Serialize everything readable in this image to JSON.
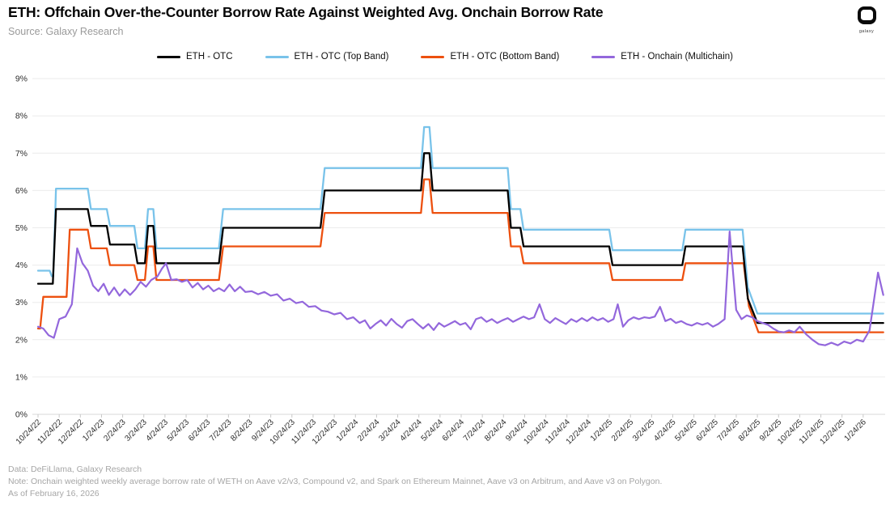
{
  "header": {
    "title": "ETH: Offchain Over-the-Counter Borrow Rate Against Weighted Avg. Onchain Borrow Rate",
    "source": "Source: Galaxy Research",
    "logo_text": "galaxy"
  },
  "legend": [
    {
      "label": "ETH - OTC",
      "color": "#000000"
    },
    {
      "label": "ETH - OTC (Top Band)",
      "color": "#79C3EA"
    },
    {
      "label": "ETH - OTC (Bottom Band)",
      "color": "#ED500F"
    },
    {
      "label": "ETH - Onchain (Multichain)",
      "color": "#9367DC"
    }
  ],
  "footer": {
    "line1": "Data: DeFiLlama, Galaxy Research",
    "line2": "Note: Onchain weighted weekly average borrow rate of WETH on Aave v2/v3, Compound v2, and Spark on Ethereum Mainnet, Aave v3 on Arbitrum, and Aave v3 on Polygon.",
    "line3": "As of February 16, 2026"
  },
  "chart_data": {
    "type": "line",
    "title": "ETH: Offchain Over-the-Counter Borrow Rate Against Weighted Avg. Onchain Borrow Rate",
    "x_unit": "months since 10/24/22 (integer i = tick_labels[i]); weekly data",
    "legend_position": "top",
    "grid": true,
    "x_axis": {
      "tick_labels": [
        "10/24/22",
        "11/24/22",
        "12/24/22",
        "1/24/23",
        "2/24/23",
        "3/24/23",
        "4/24/23",
        "5/24/23",
        "6/24/23",
        "7/24/23",
        "8/24/23",
        "9/24/23",
        "10/24/23",
        "11/24/23",
        "12/24/23",
        "1/24/24",
        "2/24/24",
        "3/24/24",
        "4/24/24",
        "5/24/24",
        "6/24/24",
        "7/24/24",
        "8/24/24",
        "9/24/24",
        "10/24/24",
        "11/24/24",
        "12/24/24",
        "1/24/25",
        "2/24/25",
        "3/24/25",
        "4/24/25",
        "5/24/25",
        "6/24/25",
        "7/24/25",
        "8/24/25",
        "9/24/25",
        "10/24/25",
        "11/24/25",
        "12/24/25",
        "1/24/26"
      ]
    },
    "y_axis": {
      "min": 0,
      "max": 9,
      "step": 1,
      "tick_suffix": "%",
      "tick_labels": [
        "0%",
        "1%",
        "2%",
        "3%",
        "4%",
        "5%",
        "6%",
        "7%",
        "8%",
        "9%"
      ]
    },
    "series": [
      {
        "name": "ETH - OTC (Top Band)",
        "color": "#79C3EA",
        "width": 2.3,
        "points": [
          [
            0,
            3.85
          ],
          [
            0.55,
            3.85
          ],
          [
            0.65,
            3.7
          ],
          [
            0.72,
            3.7
          ],
          [
            0.85,
            6.05
          ],
          [
            2.35,
            6.05
          ],
          [
            2.5,
            5.5
          ],
          [
            3.25,
            5.5
          ],
          [
            3.4,
            5.05
          ],
          [
            4.55,
            5.05
          ],
          [
            4.7,
            4.45
          ],
          [
            5.05,
            4.45
          ],
          [
            5.2,
            5.5
          ],
          [
            5.45,
            5.5
          ],
          [
            5.6,
            4.45
          ],
          [
            8.55,
            4.45
          ],
          [
            8.75,
            5.5
          ],
          [
            13.35,
            5.5
          ],
          [
            13.55,
            6.6
          ],
          [
            18.1,
            6.6
          ],
          [
            18.25,
            7.7
          ],
          [
            18.5,
            7.7
          ],
          [
            18.65,
            6.6
          ],
          [
            22.2,
            6.6
          ],
          [
            22.35,
            5.5
          ],
          [
            22.8,
            5.5
          ],
          [
            22.95,
            4.95
          ],
          [
            27.0,
            4.95
          ],
          [
            27.15,
            4.4
          ],
          [
            30.45,
            4.4
          ],
          [
            30.6,
            4.95
          ],
          [
            33.3,
            4.95
          ],
          [
            33.55,
            3.4
          ],
          [
            34.0,
            2.7
          ],
          [
            39.95,
            2.7
          ]
        ]
      },
      {
        "name": "ETH - OTC (Bottom Band)",
        "color": "#ED500F",
        "width": 2.3,
        "points": [
          [
            0,
            2.3
          ],
          [
            0.1,
            2.3
          ],
          [
            0.25,
            3.15
          ],
          [
            1.35,
            3.15
          ],
          [
            1.5,
            4.95
          ],
          [
            2.35,
            4.95
          ],
          [
            2.5,
            4.45
          ],
          [
            3.25,
            4.45
          ],
          [
            3.4,
            4.0
          ],
          [
            4.55,
            4.0
          ],
          [
            4.7,
            3.6
          ],
          [
            5.05,
            3.6
          ],
          [
            5.2,
            4.5
          ],
          [
            5.45,
            4.5
          ],
          [
            5.6,
            3.6
          ],
          [
            8.55,
            3.6
          ],
          [
            8.75,
            4.5
          ],
          [
            13.35,
            4.5
          ],
          [
            13.55,
            5.4
          ],
          [
            18.1,
            5.4
          ],
          [
            18.25,
            6.3
          ],
          [
            18.5,
            6.3
          ],
          [
            18.65,
            5.4
          ],
          [
            22.2,
            5.4
          ],
          [
            22.35,
            4.5
          ],
          [
            22.8,
            4.5
          ],
          [
            22.95,
            4.05
          ],
          [
            27.0,
            4.05
          ],
          [
            27.15,
            3.6
          ],
          [
            30.45,
            3.6
          ],
          [
            30.6,
            4.05
          ],
          [
            33.35,
            4.05
          ],
          [
            33.6,
            2.9
          ],
          [
            34.05,
            2.2
          ],
          [
            39.95,
            2.2
          ]
        ]
      },
      {
        "name": "ETH - OTC",
        "color": "#000000",
        "width": 2.3,
        "points": [
          [
            0,
            3.5
          ],
          [
            0.7,
            3.5
          ],
          [
            0.85,
            5.5
          ],
          [
            2.35,
            5.5
          ],
          [
            2.5,
            5.05
          ],
          [
            3.25,
            5.05
          ],
          [
            3.4,
            4.55
          ],
          [
            4.55,
            4.55
          ],
          [
            4.7,
            4.05
          ],
          [
            5.05,
            4.05
          ],
          [
            5.2,
            5.05
          ],
          [
            5.45,
            5.05
          ],
          [
            5.6,
            4.05
          ],
          [
            8.55,
            4.05
          ],
          [
            8.75,
            5.0
          ],
          [
            13.35,
            5.0
          ],
          [
            13.55,
            6.0
          ],
          [
            18.1,
            6.0
          ],
          [
            18.25,
            7.0
          ],
          [
            18.5,
            7.0
          ],
          [
            18.65,
            6.0
          ],
          [
            22.2,
            6.0
          ],
          [
            22.35,
            5.0
          ],
          [
            22.8,
            5.0
          ],
          [
            22.95,
            4.5
          ],
          [
            27.0,
            4.5
          ],
          [
            27.15,
            4.0
          ],
          [
            30.45,
            4.0
          ],
          [
            30.6,
            4.5
          ],
          [
            33.3,
            4.5
          ],
          [
            33.55,
            3.1
          ],
          [
            34.0,
            2.45
          ],
          [
            39.95,
            2.45
          ]
        ]
      },
      {
        "name": "ETH - Onchain (Multichain)",
        "color": "#9367DC",
        "width": 2.2,
        "points": [
          [
            0,
            2.35
          ],
          [
            0.25,
            2.3
          ],
          [
            0.5,
            2.12
          ],
          [
            0.75,
            2.05
          ],
          [
            1.0,
            2.55
          ],
          [
            1.3,
            2.62
          ],
          [
            1.6,
            2.95
          ],
          [
            1.85,
            4.45
          ],
          [
            2.1,
            4.05
          ],
          [
            2.35,
            3.85
          ],
          [
            2.6,
            3.45
          ],
          [
            2.85,
            3.3
          ],
          [
            3.1,
            3.5
          ],
          [
            3.35,
            3.2
          ],
          [
            3.6,
            3.4
          ],
          [
            3.85,
            3.18
          ],
          [
            4.1,
            3.35
          ],
          [
            4.35,
            3.2
          ],
          [
            4.6,
            3.35
          ],
          [
            4.85,
            3.55
          ],
          [
            5.1,
            3.42
          ],
          [
            5.35,
            3.6
          ],
          [
            5.65,
            3.7
          ],
          [
            5.85,
            3.9
          ],
          [
            6.05,
            4.05
          ],
          [
            6.3,
            3.6
          ],
          [
            6.55,
            3.62
          ],
          [
            6.8,
            3.55
          ],
          [
            7.05,
            3.6
          ],
          [
            7.3,
            3.4
          ],
          [
            7.55,
            3.52
          ],
          [
            7.8,
            3.35
          ],
          [
            8.05,
            3.45
          ],
          [
            8.3,
            3.3
          ],
          [
            8.55,
            3.38
          ],
          [
            8.8,
            3.3
          ],
          [
            9.05,
            3.48
          ],
          [
            9.3,
            3.3
          ],
          [
            9.55,
            3.42
          ],
          [
            9.8,
            3.28
          ],
          [
            10.1,
            3.3
          ],
          [
            10.4,
            3.22
          ],
          [
            10.7,
            3.28
          ],
          [
            11.0,
            3.18
          ],
          [
            11.3,
            3.22
          ],
          [
            11.6,
            3.05
          ],
          [
            11.9,
            3.1
          ],
          [
            12.2,
            2.98
          ],
          [
            12.5,
            3.02
          ],
          [
            12.8,
            2.88
          ],
          [
            13.1,
            2.9
          ],
          [
            13.4,
            2.78
          ],
          [
            13.7,
            2.75
          ],
          [
            14.0,
            2.68
          ],
          [
            14.3,
            2.72
          ],
          [
            14.6,
            2.55
          ],
          [
            14.9,
            2.6
          ],
          [
            15.2,
            2.45
          ],
          [
            15.45,
            2.52
          ],
          [
            15.7,
            2.3
          ],
          [
            15.95,
            2.42
          ],
          [
            16.2,
            2.52
          ],
          [
            16.45,
            2.38
          ],
          [
            16.7,
            2.56
          ],
          [
            16.95,
            2.42
          ],
          [
            17.2,
            2.32
          ],
          [
            17.45,
            2.5
          ],
          [
            17.7,
            2.55
          ],
          [
            17.95,
            2.42
          ],
          [
            18.2,
            2.3
          ],
          [
            18.45,
            2.42
          ],
          [
            18.7,
            2.26
          ],
          [
            18.95,
            2.45
          ],
          [
            19.2,
            2.35
          ],
          [
            19.45,
            2.42
          ],
          [
            19.7,
            2.5
          ],
          [
            19.95,
            2.4
          ],
          [
            20.2,
            2.45
          ],
          [
            20.45,
            2.28
          ],
          [
            20.7,
            2.55
          ],
          [
            20.95,
            2.6
          ],
          [
            21.2,
            2.48
          ],
          [
            21.45,
            2.55
          ],
          [
            21.7,
            2.45
          ],
          [
            21.95,
            2.52
          ],
          [
            22.2,
            2.58
          ],
          [
            22.45,
            2.48
          ],
          [
            22.7,
            2.55
          ],
          [
            22.95,
            2.62
          ],
          [
            23.2,
            2.55
          ],
          [
            23.45,
            2.6
          ],
          [
            23.7,
            2.95
          ],
          [
            23.95,
            2.55
          ],
          [
            24.2,
            2.45
          ],
          [
            24.45,
            2.58
          ],
          [
            24.7,
            2.5
          ],
          [
            24.95,
            2.42
          ],
          [
            25.2,
            2.55
          ],
          [
            25.45,
            2.48
          ],
          [
            25.7,
            2.58
          ],
          [
            25.95,
            2.5
          ],
          [
            26.2,
            2.6
          ],
          [
            26.45,
            2.52
          ],
          [
            26.7,
            2.58
          ],
          [
            26.95,
            2.48
          ],
          [
            27.2,
            2.55
          ],
          [
            27.4,
            2.95
          ],
          [
            27.65,
            2.35
          ],
          [
            27.9,
            2.52
          ],
          [
            28.15,
            2.6
          ],
          [
            28.4,
            2.55
          ],
          [
            28.65,
            2.6
          ],
          [
            28.9,
            2.58
          ],
          [
            29.15,
            2.62
          ],
          [
            29.4,
            2.88
          ],
          [
            29.65,
            2.5
          ],
          [
            29.9,
            2.56
          ],
          [
            30.15,
            2.45
          ],
          [
            30.4,
            2.5
          ],
          [
            30.65,
            2.42
          ],
          [
            30.9,
            2.38
          ],
          [
            31.15,
            2.45
          ],
          [
            31.4,
            2.4
          ],
          [
            31.65,
            2.45
          ],
          [
            31.9,
            2.35
          ],
          [
            32.15,
            2.42
          ],
          [
            32.45,
            2.55
          ],
          [
            32.69,
            4.9
          ],
          [
            33.0,
            2.8
          ],
          [
            33.25,
            2.55
          ],
          [
            33.5,
            2.65
          ],
          [
            33.75,
            2.6
          ],
          [
            34.0,
            2.5
          ],
          [
            34.25,
            2.45
          ],
          [
            34.5,
            2.4
          ],
          [
            34.75,
            2.3
          ],
          [
            35.0,
            2.22
          ],
          [
            35.25,
            2.2
          ],
          [
            35.5,
            2.25
          ],
          [
            35.75,
            2.2
          ],
          [
            36.0,
            2.35
          ],
          [
            36.3,
            2.15
          ],
          [
            36.6,
            2.0
          ],
          [
            36.9,
            1.88
          ],
          [
            37.2,
            1.85
          ],
          [
            37.5,
            1.92
          ],
          [
            37.8,
            1.85
          ],
          [
            38.1,
            1.95
          ],
          [
            38.4,
            1.9
          ],
          [
            38.7,
            2.0
          ],
          [
            39.0,
            1.95
          ],
          [
            39.3,
            2.25
          ],
          [
            39.7,
            3.8
          ],
          [
            39.95,
            3.2
          ]
        ]
      }
    ],
    "style": {
      "gridline_color": "#ececec",
      "axis_color": "#d8d8d8",
      "tick_color": "#c8c8c8",
      "label_color": "#2e2e2e"
    }
  }
}
